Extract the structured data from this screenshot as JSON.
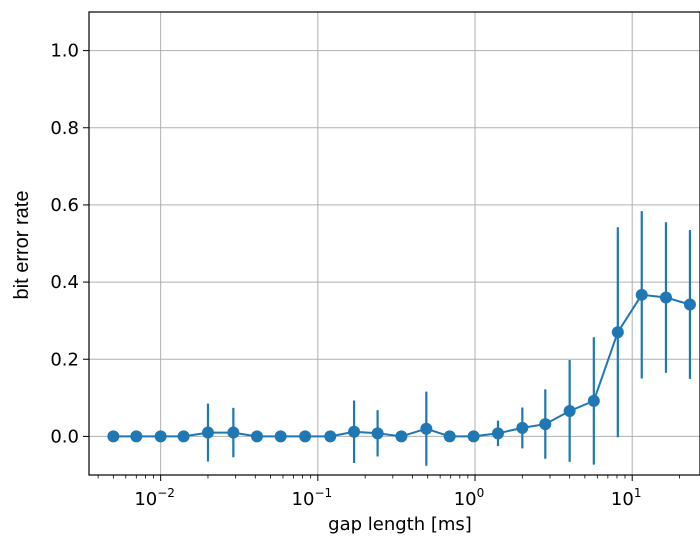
{
  "chart_data": {
    "type": "line",
    "title": "",
    "xlabel": "gap length [ms]",
    "ylabel": "bit error rate",
    "xscale": "log",
    "xlim": [
      0.0035,
      27
    ],
    "ylim": [
      -0.1,
      1.1
    ],
    "grid": true,
    "color": "#1f77b4",
    "xticks": [
      {
        "base": "10",
        "exp": "−2",
        "value": 0.01
      },
      {
        "base": "10",
        "exp": "−1",
        "value": 0.1
      },
      {
        "base": "10",
        "exp": "0",
        "value": 1
      },
      {
        "base": "10",
        "exp": "1",
        "value": 10
      }
    ],
    "yticks": [
      {
        "label": "0.0",
        "value": 0.0
      },
      {
        "label": "0.2",
        "value": 0.2
      },
      {
        "label": "0.4",
        "value": 0.4
      },
      {
        "label": "0.6",
        "value": 0.6
      },
      {
        "label": "0.8",
        "value": 0.8
      },
      {
        "label": "1.0",
        "value": 1.0
      }
    ],
    "series": [
      {
        "x": [
          0.005,
          0.007,
          0.01,
          0.014,
          0.02,
          0.029,
          0.041,
          0.058,
          0.083,
          0.12,
          0.17,
          0.24,
          0.34,
          0.49,
          0.69,
          0.98,
          1.4,
          2.0,
          2.8,
          4.0,
          5.7,
          8.1,
          11.5,
          16.4,
          23.3
        ],
        "y": [
          0.0,
          0.0,
          0.0,
          0.0,
          0.01,
          0.01,
          0.0,
          0.0,
          0.0,
          0.0,
          0.012,
          0.008,
          0.0,
          0.02,
          0.0,
          0.0,
          0.008,
          0.022,
          0.032,
          0.066,
          0.092,
          0.27,
          0.367,
          0.36,
          0.342
        ],
        "err": [
          0.0,
          0.0,
          0.0,
          0.0,
          0.075,
          0.064,
          0.0,
          0.0,
          0.0,
          0.0,
          0.081,
          0.06,
          0.0,
          0.096,
          0.0,
          0.0,
          0.033,
          0.053,
          0.09,
          0.132,
          0.165,
          0.272,
          0.217,
          0.195,
          0.193
        ]
      }
    ]
  }
}
